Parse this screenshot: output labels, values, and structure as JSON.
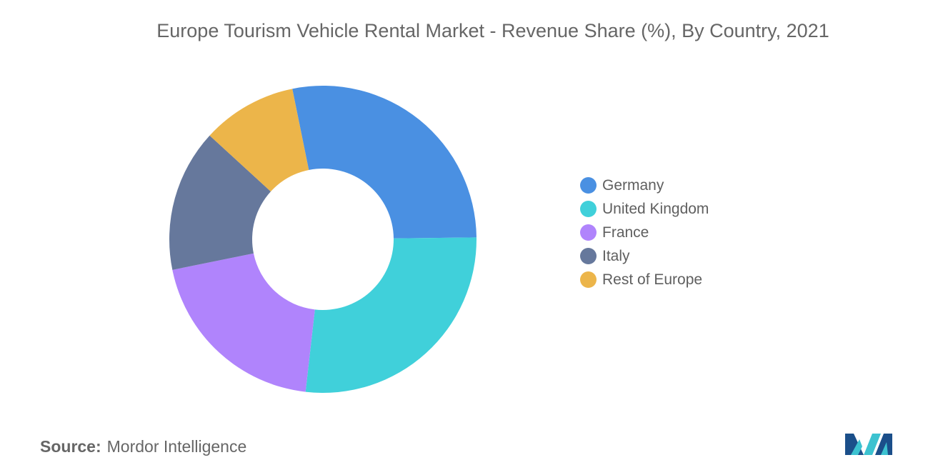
{
  "title": "Europe Tourism Vehicle Rental Market - Revenue Share (%), By Country, 2021",
  "source": {
    "label": "Source:",
    "value": "Mordor Intelligence"
  },
  "logo": {
    "icon": "mordor-intelligence-logo-icon",
    "colors": [
      "#1b4f8a",
      "#3cc2d0"
    ]
  },
  "chart_data": {
    "type": "pie",
    "style": "donut",
    "legend_position": "right",
    "categories": [
      "Germany",
      "United Kingdom",
      "France",
      "Italy",
      "Rest of Europe"
    ],
    "values": [
      28,
      27,
      20,
      15,
      10
    ],
    "colors": [
      "#4a90e2",
      "#40d0da",
      "#b084fc",
      "#66789c",
      "#ecb54a"
    ]
  }
}
